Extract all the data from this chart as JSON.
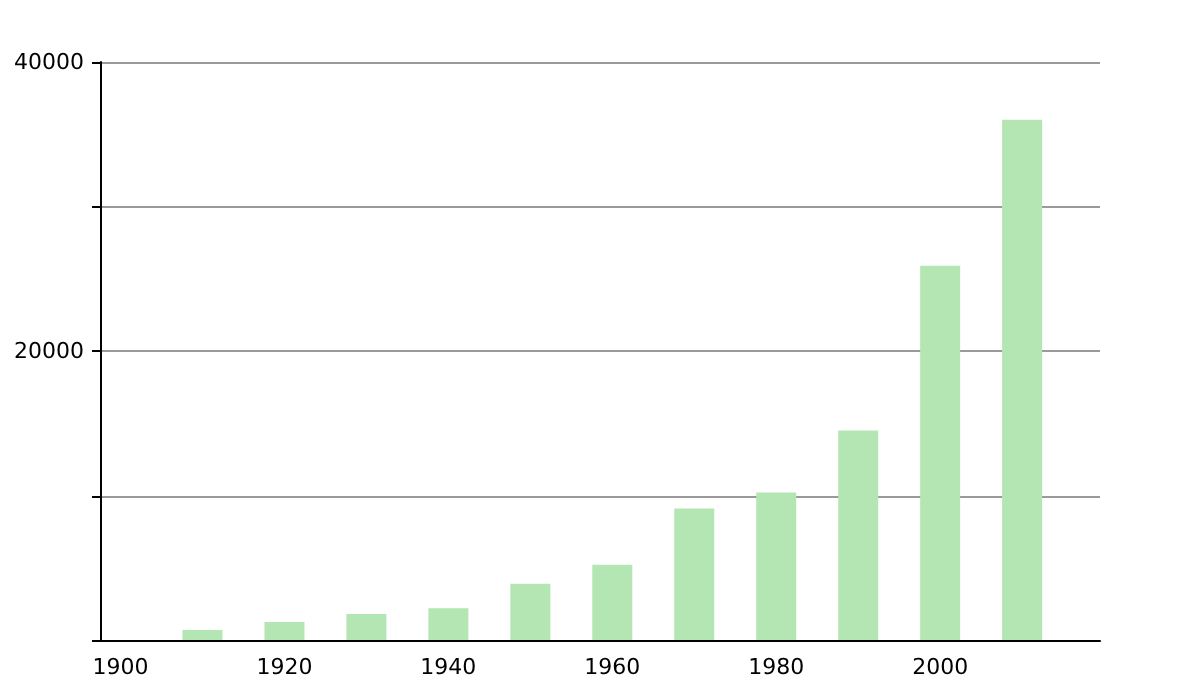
{
  "chart_data": {
    "type": "bar",
    "x": [
      1910,
      1920,
      1930,
      1940,
      1950,
      1960,
      1970,
      1980,
      1990,
      2000,
      2010
    ],
    "values": [
      700,
      1250,
      1800,
      2200,
      3900,
      5200,
      9100,
      10200,
      14500,
      25900,
      36000
    ],
    "color": "#b3e6b3",
    "xlim": [
      1897.5,
      2019.5
    ],
    "xticks": [
      1900,
      1920,
      1940,
      1960,
      1980,
      2000
    ],
    "ylim": [
      0,
      40000
    ],
    "yticks": [
      {
        "value": 0,
        "label": null
      },
      {
        "value": 10000,
        "label": null
      },
      20000,
      {
        "value": 30000,
        "label": null
      },
      40000
    ],
    "grid": "y"
  }
}
